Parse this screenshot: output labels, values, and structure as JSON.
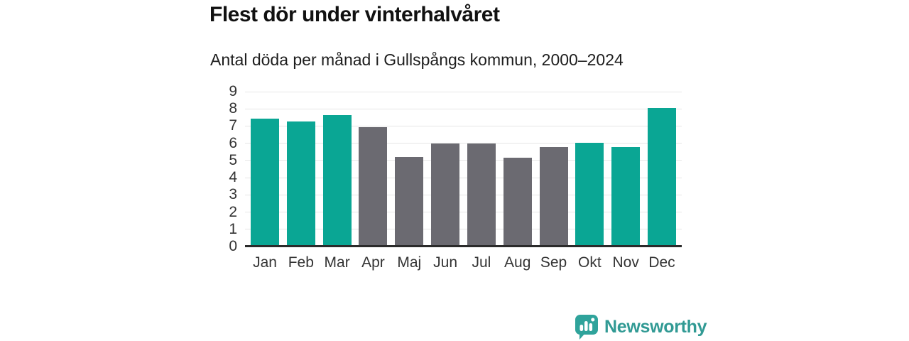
{
  "title": "Flest dör under vinterhalvåret",
  "subtitle": "Antal döda per månad i Gullspångs kommun, 2000–2024",
  "branding": {
    "logo_text": "Newsworthy",
    "logo_icon": "bar-chart-speech-bubble-icon"
  },
  "colors": {
    "winter_bar": "#0aa694",
    "summer_bar": "#6b6a71",
    "grid": "#e6e6e6",
    "axis": "#2b2b2b",
    "title_text": "#111111",
    "tick_text": "#333333",
    "brand": "#319a94"
  },
  "chart_data": {
    "type": "bar",
    "categories": [
      "Jan",
      "Feb",
      "Mar",
      "Apr",
      "Maj",
      "Jun",
      "Jul",
      "Aug",
      "Sep",
      "Okt",
      "Nov",
      "Dec"
    ],
    "values": [
      7.44,
      7.28,
      7.64,
      6.92,
      5.2,
      6.0,
      6.0,
      5.16,
      5.8,
      6.04,
      5.8,
      8.04
    ],
    "bar_seasons": [
      "winter",
      "winter",
      "winter",
      "summer",
      "summer",
      "summer",
      "summer",
      "summer",
      "summer",
      "winter",
      "winter",
      "winter"
    ],
    "title": "Flest dör under vinterhalvåret",
    "subtitle": "Antal döda per månad i Gullspångs kommun, 2000–2024",
    "xlabel": "",
    "ylabel": "",
    "ylim": [
      0,
      9
    ],
    "yticks": [
      0,
      1,
      2,
      3,
      4,
      5,
      6,
      7,
      8,
      9
    ],
    "grid": true,
    "legend": false
  }
}
